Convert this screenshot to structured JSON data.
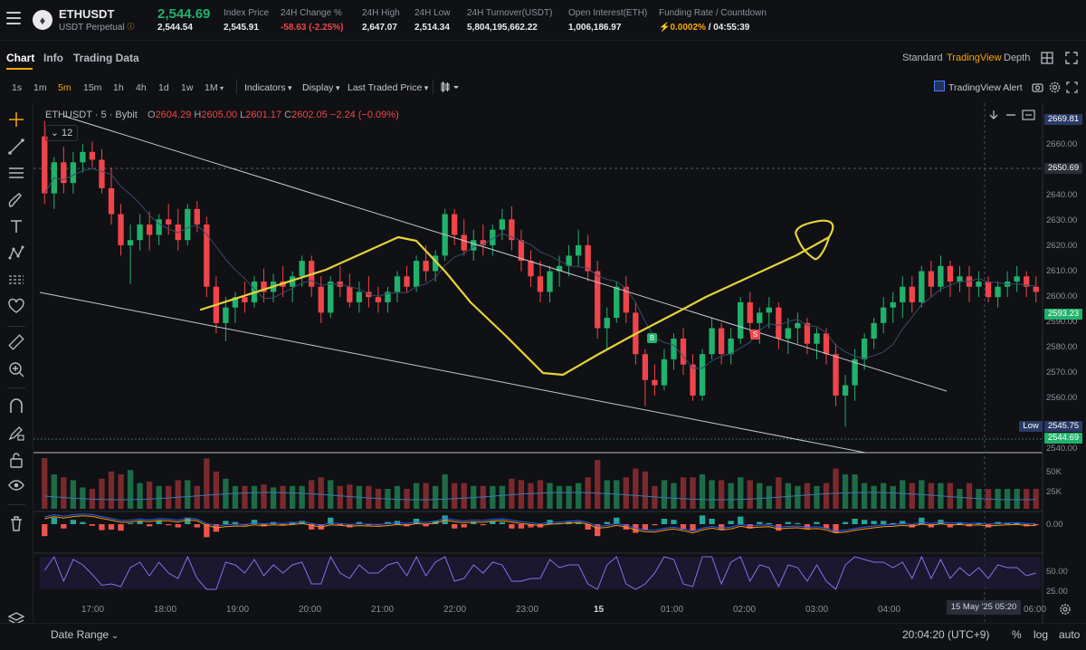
{
  "header": {
    "symbol": "ETHUSDT",
    "contract": "USDT Perpetual",
    "info_icon": "info-icon",
    "last_price": "2,544.69",
    "mark_price": "2,544.54",
    "stats": [
      {
        "label": "Index Price",
        "value": "2,545.91",
        "tone": "normal"
      },
      {
        "label": "24H Change %",
        "value": "-58.63 (-2.25%)",
        "tone": "negative"
      },
      {
        "label": "24H High",
        "value": "2,647.07",
        "tone": "normal"
      },
      {
        "label": "24H Low",
        "value": "2,514.34",
        "tone": "normal"
      },
      {
        "label": "24H Turnover(USDT)",
        "value": "5,804,195,662.22",
        "tone": "normal"
      },
      {
        "label": "Open Interest(ETH)",
        "value": "1,006,186.97",
        "tone": "normal"
      },
      {
        "label": "Funding Rate / Countdown",
        "value_rate": "0.0002%",
        "value_sep": " / ",
        "value_countdown": "04:55:39",
        "tone": "mixed"
      }
    ]
  },
  "tabs": [
    "Chart",
    "Info",
    "Trading Data"
  ],
  "views": [
    "Standard",
    "TradingView",
    "Depth"
  ],
  "timeframes": [
    "1s",
    "1m",
    "5m",
    "15m",
    "1h",
    "4h",
    "1d",
    "1w",
    "1M"
  ],
  "active_timeframe": "5m",
  "toolbar": {
    "indicators": "Indicators",
    "display": "Display",
    "price_type": "Last Traded Price",
    "alert": "TradingView Alert"
  },
  "legend": {
    "symbol": "ETHUSDT · 5 · Bybit",
    "o_label": "O",
    "o": "2604.29",
    "h_label": "H",
    "h": "2605.00",
    "l_label": "L",
    "l": "2601.17",
    "c_label": "C",
    "c": "2602.05",
    "change": "−2.24 (−0.09%)",
    "badge": "12"
  },
  "price_axis": {
    "ticks": [
      "2660.00",
      "2640.00",
      "2630.00",
      "2620.00",
      "2610.00",
      "2600.00",
      "2590.00",
      "2580.00",
      "2570.00",
      "2560.00",
      "2540.00"
    ],
    "badges": [
      {
        "text": "2669.81",
        "color": "#2a3a66"
      },
      {
        "text": "2650.69",
        "color": "#2a2e39"
      },
      {
        "text": "2593.23",
        "color": "#20b26c"
      },
      {
        "text": "Low",
        "color": "#2a3a66"
      },
      {
        "text": "2545.75",
        "color": "#2a3a66"
      },
      {
        "text": "2544.69",
        "color": "#20b26c"
      }
    ],
    "volume_ticks": [
      "50K",
      "25K"
    ],
    "macd_tick": "0.00",
    "rsi_ticks": [
      "50.00",
      "25.00"
    ]
  },
  "time_axis": {
    "labels": [
      "17:00",
      "18:00",
      "19:00",
      "20:00",
      "21:00",
      "22:00",
      "23:00",
      "15",
      "01:00",
      "02:00",
      "03:00",
      "04:00",
      "06:00"
    ],
    "crosshair": "15 May '25   05:20"
  },
  "markers": [
    {
      "text": "B",
      "color": "#20b26c"
    },
    {
      "text": "S",
      "color": "#ef454a"
    }
  ],
  "footer": {
    "date_range": "Date Range",
    "clock": "20:04:20 (UTC+9)",
    "pct": "%",
    "log": "log",
    "auto": "auto"
  },
  "colors": {
    "up": "#20b26c",
    "down": "#ef454a",
    "accent": "#f7a600",
    "drawing": "#e6d23a"
  },
  "chart_data": {
    "type": "candlestick",
    "ylim": [
      2540,
      2672
    ],
    "candles": [
      [
        2662,
        2668,
        2636,
        2640
      ],
      [
        2640,
        2654,
        2634,
        2652
      ],
      [
        2652,
        2658,
        2640,
        2644
      ],
      [
        2644,
        2656,
        2640,
        2652
      ],
      [
        2652,
        2659,
        2648,
        2656
      ],
      [
        2656,
        2660,
        2650,
        2653
      ],
      [
        2653,
        2657,
        2640,
        2642
      ],
      [
        2642,
        2650,
        2628,
        2632
      ],
      [
        2632,
        2636,
        2616,
        2620
      ],
      [
        2620,
        2628,
        2605,
        2622
      ],
      [
        2622,
        2632,
        2618,
        2628
      ],
      [
        2628,
        2633,
        2618,
        2624
      ],
      [
        2624,
        2632,
        2620,
        2630
      ],
      [
        2630,
        2636,
        2624,
        2628
      ],
      [
        2628,
        2634,
        2618,
        2622
      ],
      [
        2622,
        2636,
        2620,
        2634
      ],
      [
        2634,
        2637,
        2625,
        2628
      ],
      [
        2628,
        2631,
        2600,
        2604
      ],
      [
        2604,
        2608,
        2586,
        2590
      ],
      [
        2590,
        2600,
        2583,
        2596
      ],
      [
        2596,
        2602,
        2590,
        2600
      ],
      [
        2600,
        2606,
        2594,
        2598
      ],
      [
        2598,
        2608,
        2596,
        2606
      ],
      [
        2606,
        2611,
        2598,
        2602
      ],
      [
        2602,
        2609,
        2598,
        2606
      ],
      [
        2606,
        2612,
        2600,
        2604
      ],
      [
        2604,
        2610,
        2598,
        2608
      ],
      [
        2608,
        2616,
        2604,
        2614
      ],
      [
        2614,
        2616,
        2600,
        2604
      ],
      [
        2604,
        2608,
        2590,
        2594
      ],
      [
        2594,
        2608,
        2592,
        2606
      ],
      [
        2606,
        2612,
        2600,
        2604
      ],
      [
        2604,
        2609,
        2596,
        2598
      ],
      [
        2598,
        2606,
        2594,
        2602
      ],
      [
        2602,
        2608,
        2596,
        2600
      ],
      [
        2600,
        2604,
        2594,
        2598
      ],
      [
        2598,
        2604,
        2594,
        2602
      ],
      [
        2602,
        2610,
        2598,
        2608
      ],
      [
        2608,
        2612,
        2602,
        2604
      ],
      [
        2604,
        2616,
        2602,
        2614
      ],
      [
        2614,
        2620,
        2606,
        2610
      ],
      [
        2610,
        2618,
        2606,
        2616
      ],
      [
        2616,
        2634,
        2614,
        2632
      ],
      [
        2632,
        2634,
        2620,
        2624
      ],
      [
        2624,
        2630,
        2616,
        2618
      ],
      [
        2618,
        2626,
        2614,
        2622
      ],
      [
        2622,
        2628,
        2616,
        2620
      ],
      [
        2620,
        2628,
        2616,
        2626
      ],
      [
        2626,
        2634,
        2622,
        2630
      ],
      [
        2630,
        2635,
        2618,
        2622
      ],
      [
        2622,
        2626,
        2610,
        2614
      ],
      [
        2614,
        2618,
        2604,
        2608
      ],
      [
        2608,
        2614,
        2598,
        2602
      ],
      [
        2602,
        2612,
        2598,
        2610
      ],
      [
        2610,
        2616,
        2604,
        2612
      ],
      [
        2612,
        2620,
        2608,
        2616
      ],
      [
        2616,
        2626,
        2612,
        2620
      ],
      [
        2620,
        2624,
        2606,
        2610
      ],
      [
        2610,
        2614,
        2584,
        2588
      ],
      [
        2588,
        2596,
        2580,
        2592
      ],
      [
        2592,
        2606,
        2590,
        2604
      ],
      [
        2604,
        2608,
        2590,
        2594
      ],
      [
        2594,
        2598,
        2574,
        2578
      ],
      [
        2578,
        2580,
        2558,
        2568
      ],
      [
        2568,
        2574,
        2562,
        2566
      ],
      [
        2566,
        2580,
        2564,
        2576
      ],
      [
        2576,
        2586,
        2572,
        2584
      ],
      [
        2584,
        2588,
        2570,
        2574
      ],
      [
        2574,
        2578,
        2560,
        2562
      ],
      [
        2562,
        2580,
        2560,
        2578
      ],
      [
        2578,
        2592,
        2576,
        2588
      ],
      [
        2588,
        2590,
        2574,
        2578
      ],
      [
        2578,
        2588,
        2574,
        2584
      ],
      [
        2584,
        2600,
        2582,
        2598
      ],
      [
        2598,
        2602,
        2586,
        2590
      ],
      [
        2590,
        2596,
        2582,
        2594
      ],
      [
        2594,
        2600,
        2588,
        2596
      ],
      [
        2596,
        2598,
        2580,
        2584
      ],
      [
        2584,
        2592,
        2578,
        2588
      ],
      [
        2588,
        2594,
        2582,
        2590
      ],
      [
        2590,
        2592,
        2578,
        2582
      ],
      [
        2582,
        2588,
        2576,
        2586
      ],
      [
        2586,
        2588,
        2574,
        2578
      ],
      [
        2578,
        2582,
        2558,
        2562
      ],
      [
        2562,
        2570,
        2550,
        2566
      ],
      [
        2566,
        2580,
        2560,
        2576
      ],
      [
        2576,
        2586,
        2572,
        2584
      ],
      [
        2584,
        2592,
        2580,
        2590
      ],
      [
        2590,
        2600,
        2586,
        2596
      ],
      [
        2596,
        2602,
        2590,
        2598
      ],
      [
        2598,
        2608,
        2592,
        2604
      ],
      [
        2604,
        2608,
        2594,
        2598
      ],
      [
        2598,
        2612,
        2596,
        2610
      ],
      [
        2610,
        2614,
        2600,
        2604
      ],
      [
        2604,
        2616,
        2602,
        2612
      ],
      [
        2612,
        2614,
        2600,
        2606
      ],
      [
        2606,
        2612,
        2602,
        2608
      ],
      [
        2608,
        2612,
        2598,
        2604
      ],
      [
        2604,
        2610,
        2600,
        2606
      ],
      [
        2606,
        2608,
        2598,
        2600
      ],
      [
        2600,
        2606,
        2596,
        2604
      ],
      [
        2604,
        2610,
        2600,
        2606
      ],
      [
        2606,
        2612,
        2602,
        2608
      ],
      [
        2608,
        2610,
        2600,
        2604
      ],
      [
        2604,
        2608,
        2598,
        2602
      ]
    ]
  }
}
